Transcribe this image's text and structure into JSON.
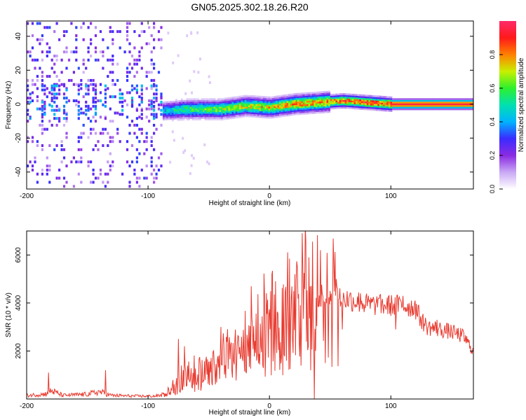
{
  "title": "GN05.2025.302.18.26.R20",
  "chart_data": [
    {
      "type": "heatmap",
      "xlabel": "Height of straight line (km)",
      "ylabel": "Frequency (Hz)",
      "xlim": [
        -200,
        168
      ],
      "ylim": [
        -50,
        49
      ],
      "xticks": [
        -200,
        -100,
        0,
        100
      ],
      "yticks": [
        -40,
        -20,
        0,
        20,
        40
      ],
      "colorbar": {
        "label": "Normalized spectral amplitude",
        "ticks": [
          "0.0",
          "0.2",
          "0.4",
          "0.6",
          "0.8"
        ],
        "tick_values": [
          0,
          0.2,
          0.4,
          0.6,
          0.8
        ],
        "range": [
          0,
          1
        ],
        "colors": [
          "#ffffff",
          "#c9a8f5",
          "#8a2be2",
          "#3a2bff",
          "#00b4ff",
          "#00e0b0",
          "#2ef02e",
          "#c8f000",
          "#ff8000",
          "#ff1a1a",
          "#ff2a6a"
        ]
      },
      "noise_region_km": [
        -200,
        -88
      ],
      "ridge": {
        "x": [
          -88,
          -70,
          -50,
          -40,
          -20,
          0,
          20,
          40,
          60,
          80,
          100,
          120,
          168
        ],
        "center_hz": [
          -4,
          -3,
          -3,
          -3,
          -1,
          -2,
          0,
          1,
          2,
          1,
          0,
          0,
          0
        ],
        "peak_amplitude": [
          0.45,
          0.6,
          0.65,
          0.7,
          0.75,
          0.8,
          0.85,
          0.85,
          0.9,
          0.95,
          0.95,
          0.95,
          0.95
        ]
      }
    },
    {
      "type": "line",
      "xlabel": "Height of straight line (km)",
      "ylabel": "SNR (10 * v/v)",
      "xlim": [
        -200,
        168
      ],
      "ylim": [
        0,
        7000
      ],
      "xticks": [
        -200,
        -100,
        0,
        100
      ],
      "yticks": [
        2000,
        4000,
        6000
      ],
      "series": [
        {
          "name": "SNR",
          "color": "#e8392e",
          "x": [
            -200,
            -185,
            -180,
            -170,
            -150,
            -140,
            -130,
            -110,
            -95,
            -88,
            -80,
            -70,
            -60,
            -50,
            -40,
            -30,
            -20,
            -10,
            0,
            10,
            20,
            30,
            40,
            50,
            60,
            70,
            80,
            90,
            100,
            110,
            120,
            125,
            130,
            140,
            150,
            160,
            168
          ],
          "y": [
            150,
            200,
            350,
            150,
            200,
            300,
            150,
            120,
            120,
            150,
            400,
            900,
            1000,
            1100,
            1400,
            1700,
            2000,
            2600,
            2900,
            3100,
            3500,
            3900,
            4300,
            4400,
            4200,
            4100,
            3950,
            3900,
            3900,
            3900,
            3800,
            3300,
            3000,
            2900,
            2800,
            2600,
            2000
          ],
          "spikes": [
            [
              -182,
              1100
            ],
            [
              -135,
              1200
            ],
            [
              -75,
              2500
            ],
            [
              -70,
              2200
            ],
            [
              -40,
              3000
            ],
            [
              -15,
              4700
            ],
            [
              20,
              4500
            ],
            [
              37,
              6900
            ],
            [
              42,
              6200
            ],
            [
              55,
              5000
            ],
            [
              75,
              4400
            ],
            [
              90,
              4200
            ],
            [
              110,
              4300
            ],
            [
              120,
              4100
            ],
            [
              138,
              3300
            ]
          ],
          "dips": [
            [
              37,
              0
            ],
            [
              34,
              1200
            ],
            [
              46,
              1500
            ],
            [
              60,
              2900
            ],
            [
              104,
              2900
            ],
            [
              38,
              2000
            ]
          ]
        }
      ]
    }
  ]
}
